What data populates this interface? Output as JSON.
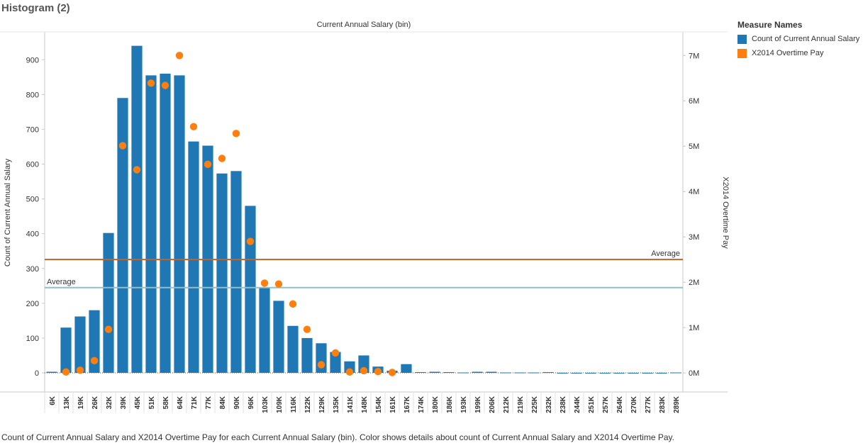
{
  "sheet_title": "Histogram (2)",
  "caption": "Count of Current Annual Salary and X2014 Overtime Pay for each Current Annual Salary (bin).  Color shows details about count of Current Annual Salary and X2014 Overtime Pay.",
  "legend": {
    "title": "Measure Names",
    "items": [
      {
        "label": "Count of Current Annual Salary",
        "color": "#1f77b4"
      },
      {
        "label": "X2014 Overtime Pay",
        "color": "#ff7f0e"
      }
    ]
  },
  "chart_data": {
    "type": "bar",
    "title": "Current Annual Salary (bin)",
    "xlabel": "",
    "ylabel": "Count of Current Annual Salary",
    "y2label": "X2014 Overtime Pay",
    "categories": [
      "6K",
      "13K",
      "19K",
      "26K",
      "32K",
      "39K",
      "45K",
      "51K",
      "58K",
      "64K",
      "71K",
      "77K",
      "84K",
      "90K",
      "96K",
      "103K",
      "109K",
      "116K",
      "122K",
      "129K",
      "135K",
      "141K",
      "148K",
      "154K",
      "161K",
      "167K",
      "174K",
      "180K",
      "186K",
      "193K",
      "199K",
      "206K",
      "212K",
      "219K",
      "225K",
      "232K",
      "238K",
      "244K",
      "251K",
      "257K",
      "264K",
      "270K",
      "277K",
      "283K",
      "289K"
    ],
    "ylim": [
      -55,
      980
    ],
    "yticks": [
      0,
      100,
      200,
      300,
      400,
      500,
      600,
      700,
      800,
      900
    ],
    "y2lim": [
      -0.42,
      7.52
    ],
    "y2ticks": [
      0,
      1,
      2,
      3,
      4,
      5,
      6,
      7
    ],
    "y2ticklabels": [
      "0M",
      "1M",
      "2M",
      "3M",
      "4M",
      "5M",
      "6M",
      "7M"
    ],
    "series": [
      {
        "name": "Count of Current Annual Salary",
        "axis": "left",
        "mark": "bar",
        "color": "#1f77b4",
        "values": [
          3,
          130,
          162,
          180,
          402,
          790,
          940,
          855,
          860,
          855,
          665,
          653,
          573,
          580,
          480,
          245,
          207,
          135,
          100,
          85,
          60,
          33,
          50,
          18,
          6,
          25,
          2,
          3,
          2,
          1,
          3,
          3,
          1,
          1,
          1,
          2,
          0,
          0,
          0,
          0,
          0,
          0,
          0,
          0,
          1
        ]
      },
      {
        "name": "X2014 Overtime Pay",
        "axis": "right",
        "mark": "circle",
        "color": "#ff7f0e",
        "values_millions": [
          null,
          0.02,
          0.06,
          0.27,
          0.96,
          5.01,
          4.48,
          6.39,
          6.34,
          7.0,
          5.43,
          4.6,
          4.73,
          5.28,
          2.9,
          1.98,
          1.96,
          1.52,
          0.96,
          0.18,
          0.44,
          0.02,
          0.05,
          0.03,
          0.01,
          null,
          null,
          null,
          null,
          null,
          null,
          null,
          null,
          null,
          null,
          null,
          null,
          null,
          null,
          null,
          null,
          null,
          null,
          null,
          null
        ]
      }
    ],
    "reference_lines": [
      {
        "label": "Average",
        "axis": "left",
        "value": 245,
        "color": "#8fbfcf",
        "label_side": "left"
      },
      {
        "label": "Average",
        "axis": "right",
        "value": 2.5,
        "color": "#c0652a",
        "label_side": "right"
      }
    ],
    "grid": false,
    "legend_position": "right"
  }
}
